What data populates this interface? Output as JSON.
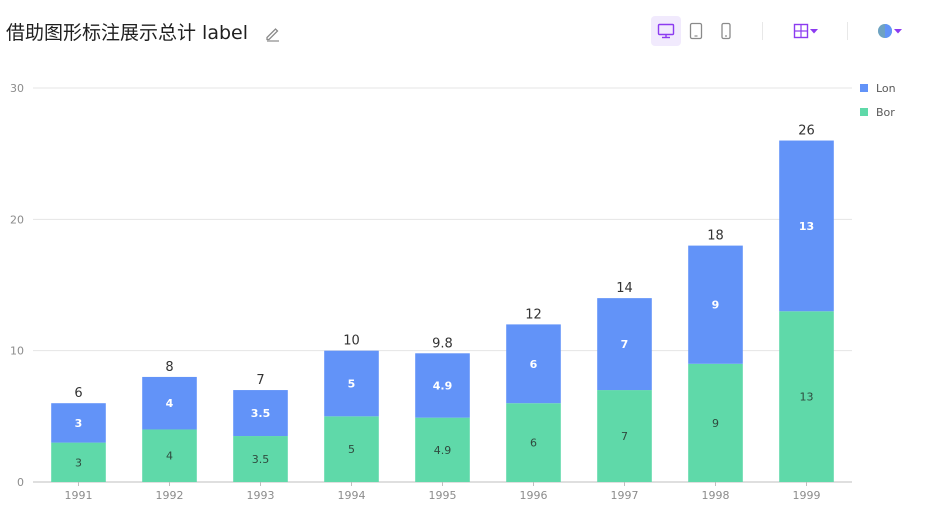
{
  "header": {
    "title": "借助图形标注展示总计 label",
    "accent_color": "#8c3bf0",
    "icons": [
      "edit-icon",
      "desktop-icon",
      "tablet-icon",
      "mobile-icon",
      "layout-icon",
      "theme-icon"
    ]
  },
  "chart_data": {
    "type": "bar",
    "stacked": true,
    "categories": [
      "1991",
      "1992",
      "1993",
      "1994",
      "1995",
      "1996",
      "1997",
      "1998",
      "1999"
    ],
    "series": [
      {
        "name": "Bor",
        "color": "#5fd9a9",
        "values": [
          3,
          4,
          3.5,
          5,
          4.9,
          6,
          7,
          9,
          13
        ]
      },
      {
        "name": "Lon",
        "color": "#6293f8",
        "values": [
          3,
          4,
          3.5,
          5,
          4.9,
          6,
          7,
          9,
          13
        ]
      }
    ],
    "totals": [
      "6",
      "8",
      "7",
      "10",
      "9.8",
      "12",
      "14",
      "18",
      "26"
    ],
    "yticks": [
      "0",
      "10",
      "20",
      "30"
    ],
    "ylim": [
      0,
      30
    ],
    "legend": {
      "position": "top-right",
      "items": [
        "Lon",
        "Bor"
      ]
    },
    "grid": true
  }
}
